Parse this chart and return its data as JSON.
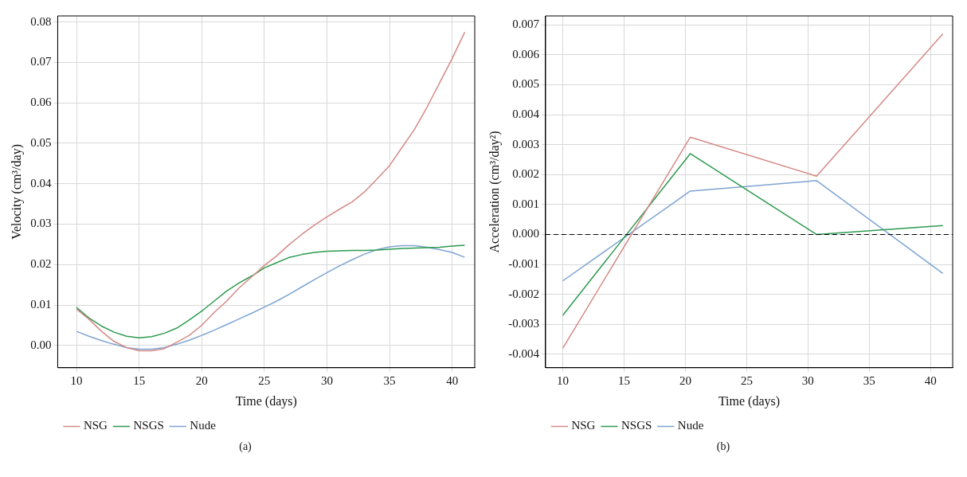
{
  "chart_data": [
    {
      "type": "line",
      "xlabel": "Time (days)",
      "ylabel": "Velocity (cm³/day)",
      "x": [
        10,
        11,
        12,
        13,
        14,
        15,
        16,
        17,
        18,
        19,
        20,
        21,
        22,
        23,
        24,
        25,
        26,
        27,
        28,
        29,
        30,
        31,
        32,
        33,
        34,
        35,
        36,
        37,
        38,
        39,
        40,
        41
      ],
      "series": [
        {
          "name": "NSG",
          "color": "#d48a86",
          "values": [
            0.009,
            0.0065,
            0.0035,
            0.001,
            -0.0005,
            -0.0013,
            -0.0013,
            -0.0008,
            0.0008,
            0.0025,
            0.005,
            0.0082,
            0.011,
            0.0143,
            0.017,
            0.0198,
            0.0222,
            0.025,
            0.0275,
            0.0298,
            0.0318,
            0.0337,
            0.0355,
            0.038,
            0.0412,
            0.0445,
            0.049,
            0.0535,
            0.059,
            0.065,
            0.071,
            0.0775
          ]
        },
        {
          "name": "NSGS",
          "color": "#2e9a50",
          "values": [
            0.0094,
            0.0068,
            0.0048,
            0.0033,
            0.0023,
            0.0019,
            0.0022,
            0.003,
            0.0043,
            0.0063,
            0.0085,
            0.011,
            0.0135,
            0.0155,
            0.0172,
            0.0192,
            0.0205,
            0.0218,
            0.0225,
            0.023,
            0.0233,
            0.0234,
            0.0235,
            0.0235,
            0.0236,
            0.0238,
            0.024,
            0.0241,
            0.0242,
            0.0243,
            0.0246,
            0.0248
          ]
        },
        {
          "name": "Nude",
          "color": "#7ea3d2",
          "values": [
            0.0035,
            0.0023,
            0.0012,
            0.0003,
            -0.0005,
            -0.0009,
            -0.0009,
            -0.0005,
            0.0003,
            0.0013,
            0.0025,
            0.0038,
            0.0052,
            0.0066,
            0.008,
            0.0095,
            0.011,
            0.0127,
            0.0145,
            0.0163,
            0.018,
            0.0197,
            0.0212,
            0.0226,
            0.0237,
            0.0244,
            0.0247,
            0.0247,
            0.0243,
            0.0237,
            0.023,
            0.0218
          ]
        }
      ],
      "xlim": [
        8.5,
        41.8
      ],
      "xticks": [
        10,
        15,
        20,
        25,
        30,
        35,
        40
      ],
      "ylim": [
        -0.0055,
        0.0815
      ],
      "yticks": [
        {
          "value": 0,
          "label": "0.00"
        },
        0.01,
        0.02,
        0.03,
        0.04,
        0.05,
        0.06,
        0.07,
        0.08
      ],
      "grid": true,
      "legend": "bottom left",
      "annotations": [
        "(a)"
      ]
    },
    {
      "type": "line",
      "xlabel": "Time (days)",
      "ylabel": "Acceleration (cm³/day²)",
      "x": [
        10,
        20.4,
        30.7,
        41
      ],
      "series": [
        {
          "name": "NSG",
          "color": "#d48a86",
          "values": [
            -0.0038,
            0.00325,
            0.00195,
            0.0067
          ]
        },
        {
          "name": "NSGS",
          "color": "#2e9a50",
          "values": [
            -0.0027,
            0.0027,
            0.0,
            0.0003
          ]
        },
        {
          "name": "Nude",
          "color": "#7ea3d2",
          "values": [
            -0.00155,
            0.00145,
            0.0018,
            -0.0013
          ]
        }
      ],
      "xlim": [
        8.6,
        41.8
      ],
      "xticks": [
        10,
        15,
        20,
        25,
        30,
        35,
        40
      ],
      "ylim": [
        -0.00445,
        0.0073
      ],
      "yticks": [
        -0.004,
        -0.003,
        -0.002,
        -0.001,
        {
          "value": 0,
          "label": "0.000"
        },
        0.001,
        0.002,
        0.003,
        0.004,
        0.005,
        0.006,
        0.007
      ],
      "ref_lines": [
        {
          "axis": "y",
          "value": 0,
          "color": "#000000",
          "line_style": "dashed"
        }
      ],
      "grid": true,
      "legend": "bottom left",
      "annotations": [
        "(b)"
      ]
    }
  ]
}
